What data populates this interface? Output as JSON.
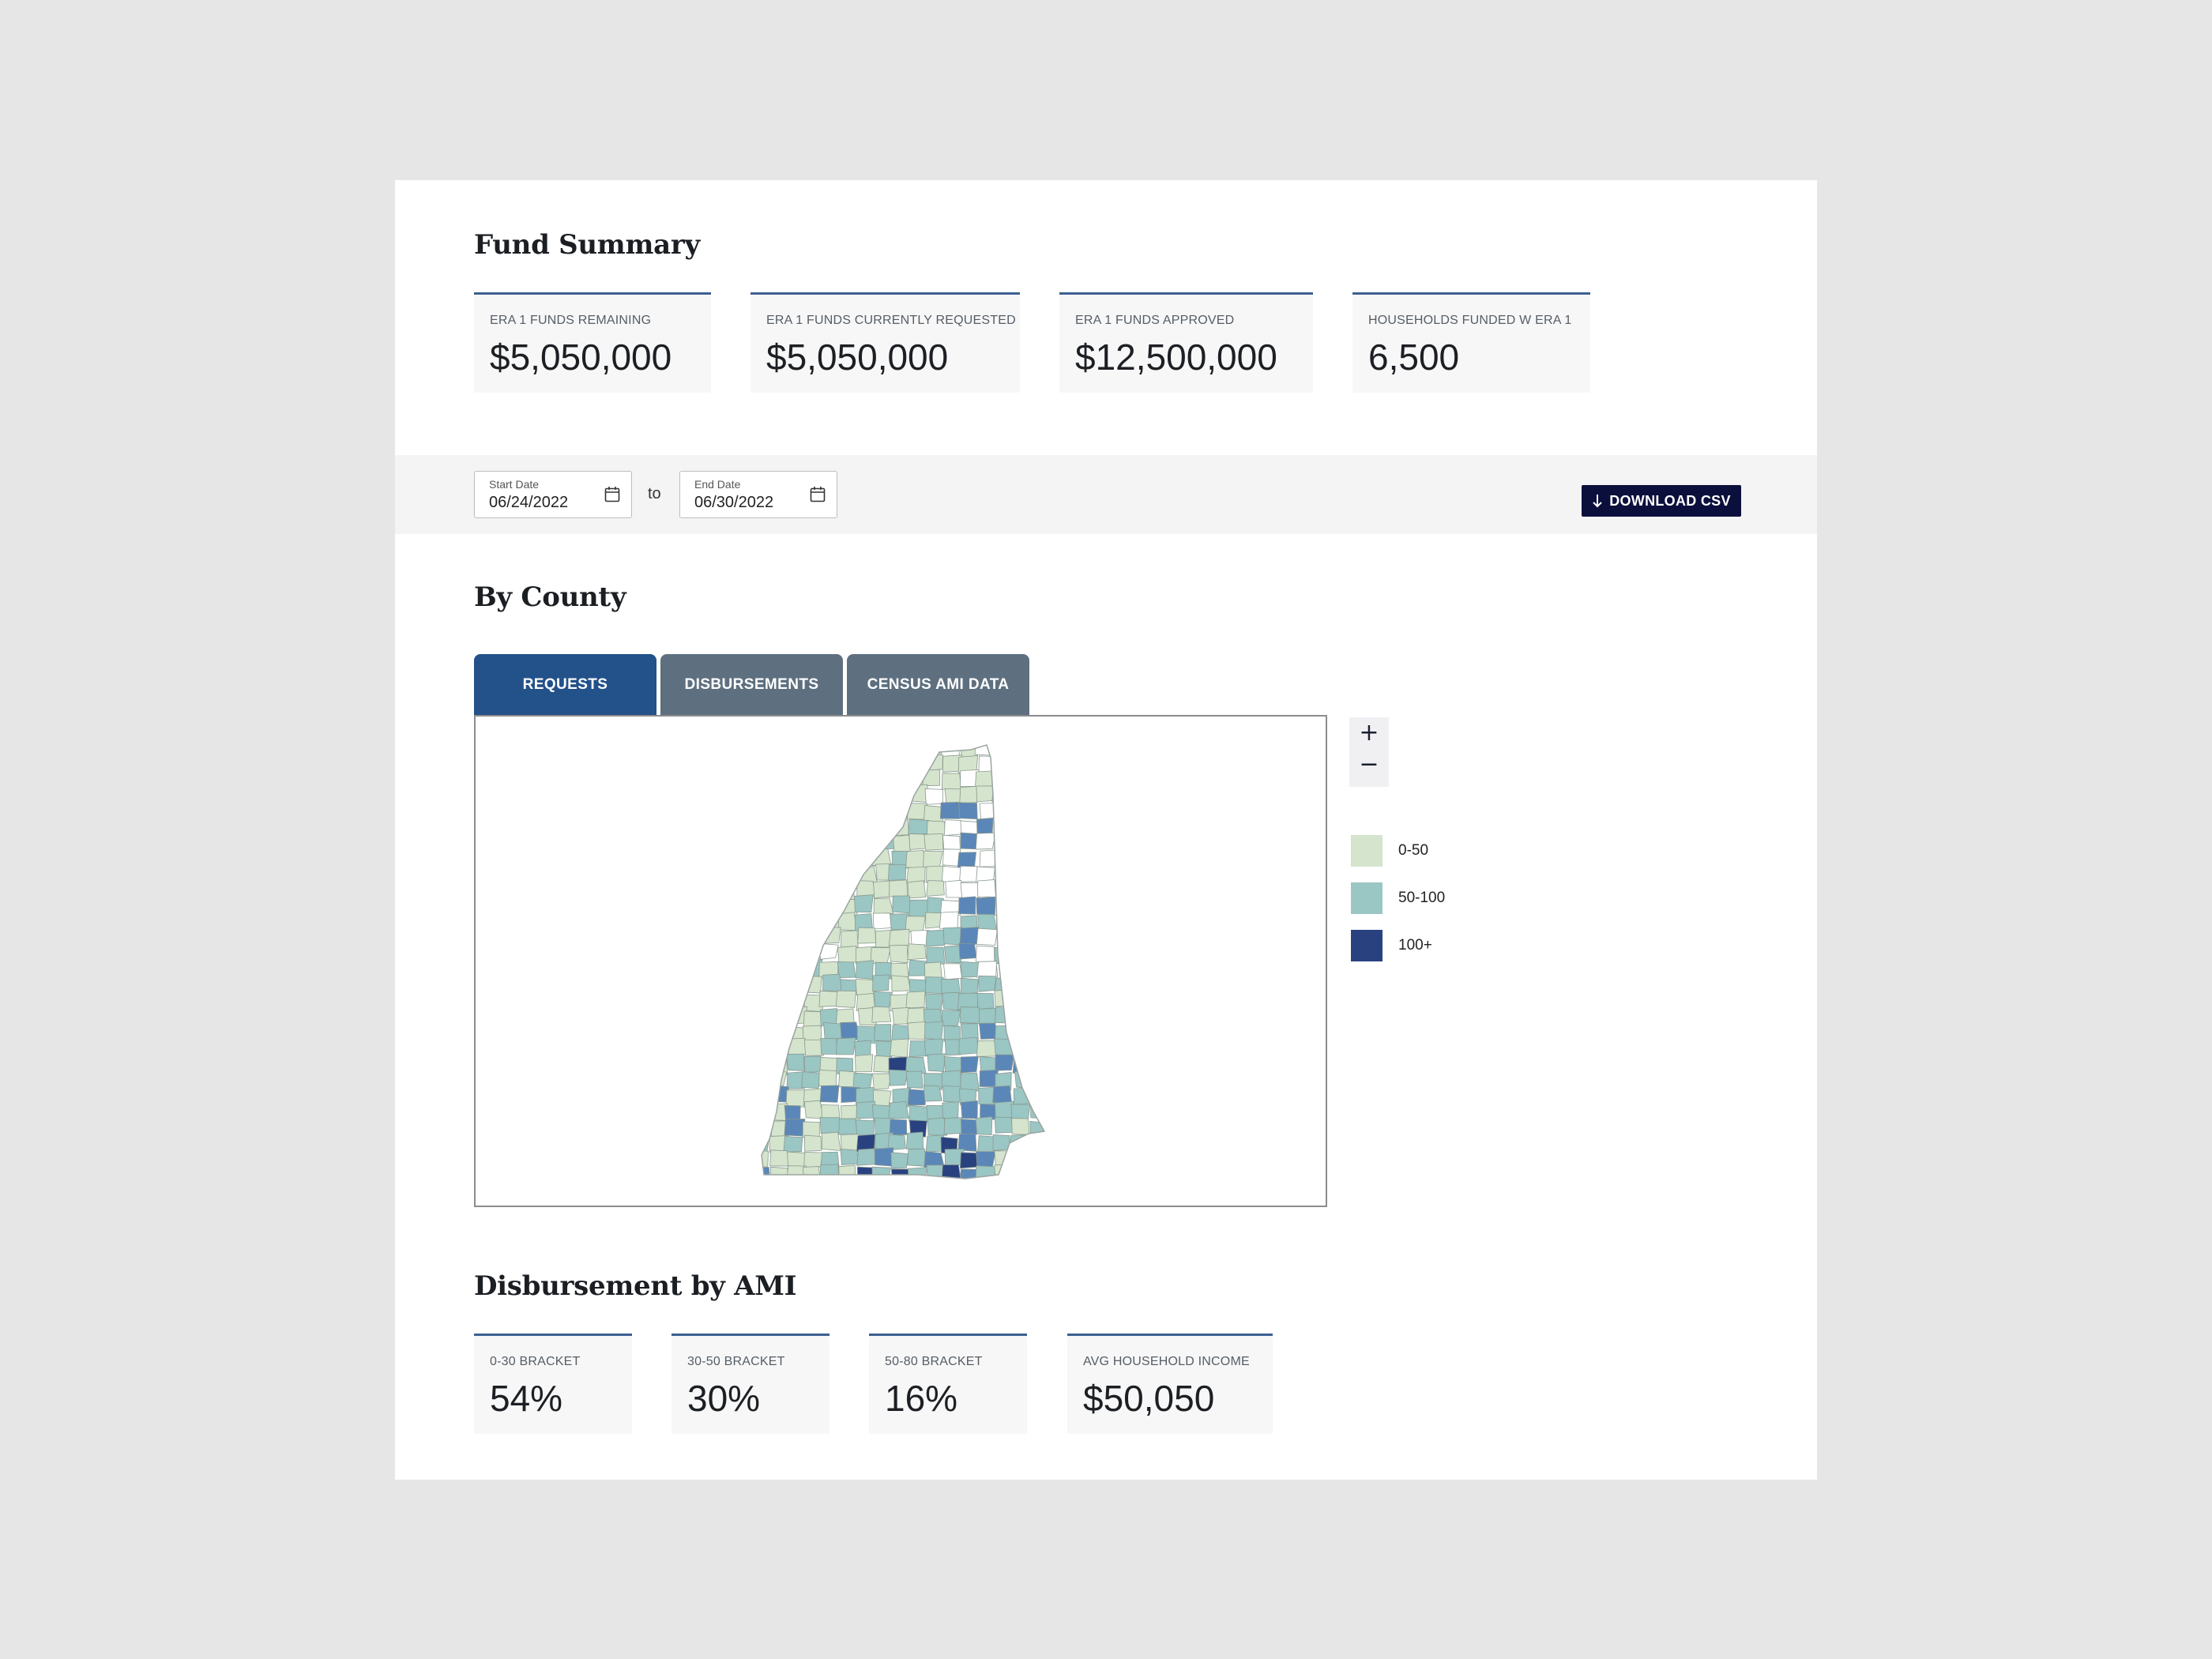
{
  "fund_summary": {
    "title": "Fund Summary",
    "cards": [
      {
        "label": "ERA 1 FUNDS REMAINING",
        "value": "$5,050,000"
      },
      {
        "label": "ERA 1 FUNDS CURRENTLY REQUESTED",
        "value": "$5,050,000"
      },
      {
        "label": "ERA 1 FUNDS APPROVED",
        "value": "$12,500,000"
      },
      {
        "label": "HOUSEHOLDS FUNDED W ERA 1",
        "value": "6,500"
      }
    ]
  },
  "filters": {
    "start_date": {
      "label": "Start Date",
      "value": "06/24/2022"
    },
    "to_label": "to",
    "end_date": {
      "label": "End Date",
      "value": "06/30/2022"
    },
    "download_label": "DOWNLOAD CSV"
  },
  "by_county": {
    "title": "By County",
    "tabs": [
      "REQUESTS",
      "DISBURSEMENTS",
      "CENSUS AMI DATA"
    ],
    "active_tab": "REQUESTS",
    "zoom": {
      "in": "+",
      "out": "−"
    },
    "legend": [
      {
        "label": "0-50",
        "color": "#d5e4cc"
      },
      {
        "label": "50-100",
        "color": "#9ac6c4"
      },
      {
        "label": "100+",
        "color": "#29427f"
      }
    ]
  },
  "disbursement_by_ami": {
    "title": "Disbursement by AMI",
    "cards": [
      {
        "label": "0-30 BRACKET",
        "value": "54%"
      },
      {
        "label": "30-50 BRACKET",
        "value": "30%"
      },
      {
        "label": "50-80 BRACKET",
        "value": "16%"
      },
      {
        "label": "AVG HOUSEHOLD INCOME",
        "value": "$50,050"
      }
    ]
  },
  "colors": {
    "accent": "#3d5f91",
    "tab_active": "#23518a",
    "tab_inactive": "#5e7080",
    "button_dark": "#0b0f3c",
    "mid_blue": "#5b86b8",
    "no_data": "#ffffff"
  }
}
